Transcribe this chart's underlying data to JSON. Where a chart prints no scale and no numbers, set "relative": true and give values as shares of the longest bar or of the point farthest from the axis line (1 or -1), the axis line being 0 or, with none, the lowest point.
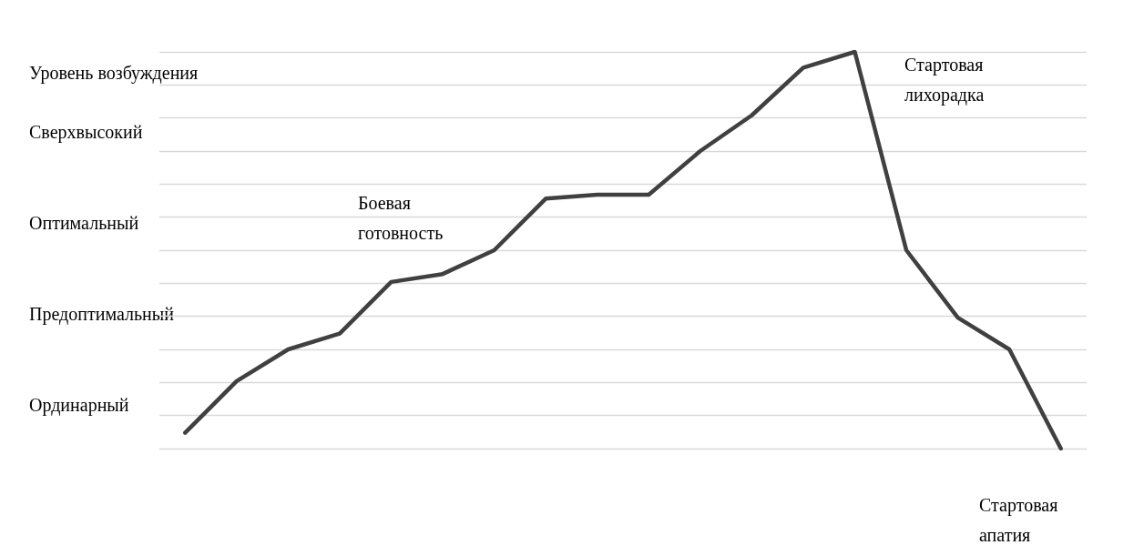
{
  "chart_data": {
    "type": "line",
    "relative": true,
    "grid": "y",
    "marker": "none",
    "line_style": "solid",
    "categories": [
      null,
      null,
      null,
      null,
      null,
      null,
      null,
      null,
      null,
      null,
      null,
      null,
      null,
      null,
      null,
      null,
      null,
      null
    ],
    "series": [
      {
        "color": "#404040",
        "values": [
          0.04,
          0.17,
          0.25,
          0.29,
          0.42,
          0.44,
          0.5,
          0.63,
          0.64,
          0.64,
          0.75,
          0.84,
          0.96,
          1,
          0.5,
          0.33,
          0.25,
          0
        ]
      }
    ],
    "annotations": [
      "Уровень возбуждения",
      "Сверхвысокий",
      "Оптимальный",
      "Предоптимальный",
      "Ординарный",
      "Боевая готовность",
      "Стартовая лихорадка",
      "Стартовая апатия"
    ]
  }
}
